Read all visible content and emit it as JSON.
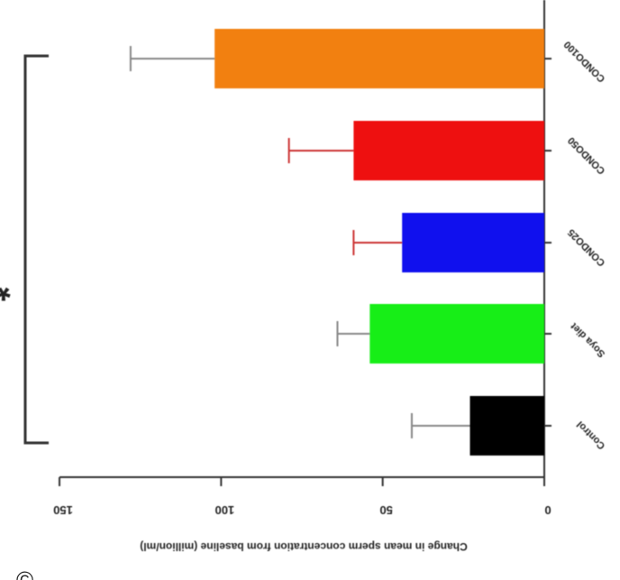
{
  "chart_data": {
    "type": "bar",
    "orientation": "horizontal-mirrored",
    "xlabel": "Change in mean sperm concentration from baseline (million/ml)",
    "ylabel": "",
    "xlim": [
      0,
      150
    ],
    "x_ticks": [
      "0",
      "50",
      "100",
      "150"
    ],
    "categories": [
      "Control",
      "Soya diet",
      "CONDO25",
      "CONDO50",
      "CONDO100"
    ],
    "values": [
      23,
      54,
      44,
      59,
      102
    ],
    "errors": [
      18,
      10,
      15,
      20,
      26
    ],
    "colors": [
      "#000000",
      "#17ee17",
      "#1010ee",
      "#ee1010",
      "#f28010"
    ],
    "error_colors": [
      "#888888",
      "#888888",
      "#cc3333",
      "#cc3333",
      "#888888"
    ],
    "significance": "*",
    "grid": false,
    "legend": "none"
  },
  "footer_mark": "©"
}
